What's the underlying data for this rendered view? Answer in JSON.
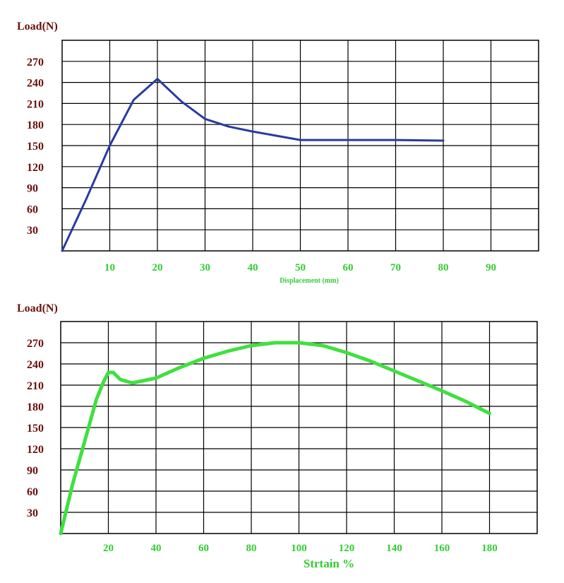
{
  "colors": {
    "axis_text": "#6b0f0f",
    "tick_green": "#33cc33",
    "grid": "#000000",
    "line1": "#2a3aa0",
    "line2": "#3fe03f"
  },
  "chart_data": [
    {
      "type": "line",
      "ylabel": "Load(N)",
      "xlabel": "Displacement (mm)",
      "xlim": [
        0,
        100
      ],
      "ylim": [
        0,
        300
      ],
      "xticks": [
        10,
        20,
        30,
        40,
        50,
        60,
        70,
        80,
        90
      ],
      "yticks": [
        30,
        60,
        90,
        120,
        150,
        180,
        210,
        240,
        270
      ],
      "series": [
        {
          "x": [
            0,
            5,
            10,
            15,
            20,
            25,
            30,
            35,
            40,
            45,
            50,
            60,
            70,
            80
          ],
          "y": [
            0,
            73,
            150,
            215,
            245,
            213,
            188,
            177,
            170,
            164,
            158,
            158,
            158,
            157
          ]
        }
      ]
    },
    {
      "type": "line",
      "ylabel": "Load(N)",
      "xlabel": "Strtain %",
      "xlim": [
        0,
        200
      ],
      "ylim": [
        0,
        300
      ],
      "xticks": [
        20,
        40,
        60,
        80,
        100,
        120,
        140,
        160,
        180
      ],
      "yticks": [
        30,
        60,
        90,
        120,
        150,
        180,
        210,
        240,
        270
      ],
      "series": [
        {
          "x": [
            0,
            5,
            10,
            15,
            18,
            20,
            22,
            25,
            30,
            40,
            50,
            60,
            70,
            80,
            90,
            100,
            110,
            120,
            130,
            140,
            150,
            160,
            170,
            180
          ],
          "y": [
            0,
            70,
            130,
            190,
            215,
            228,
            228,
            218,
            213,
            220,
            235,
            248,
            258,
            266,
            270,
            270,
            266,
            256,
            244,
            230,
            216,
            202,
            187,
            170
          ]
        }
      ]
    }
  ]
}
